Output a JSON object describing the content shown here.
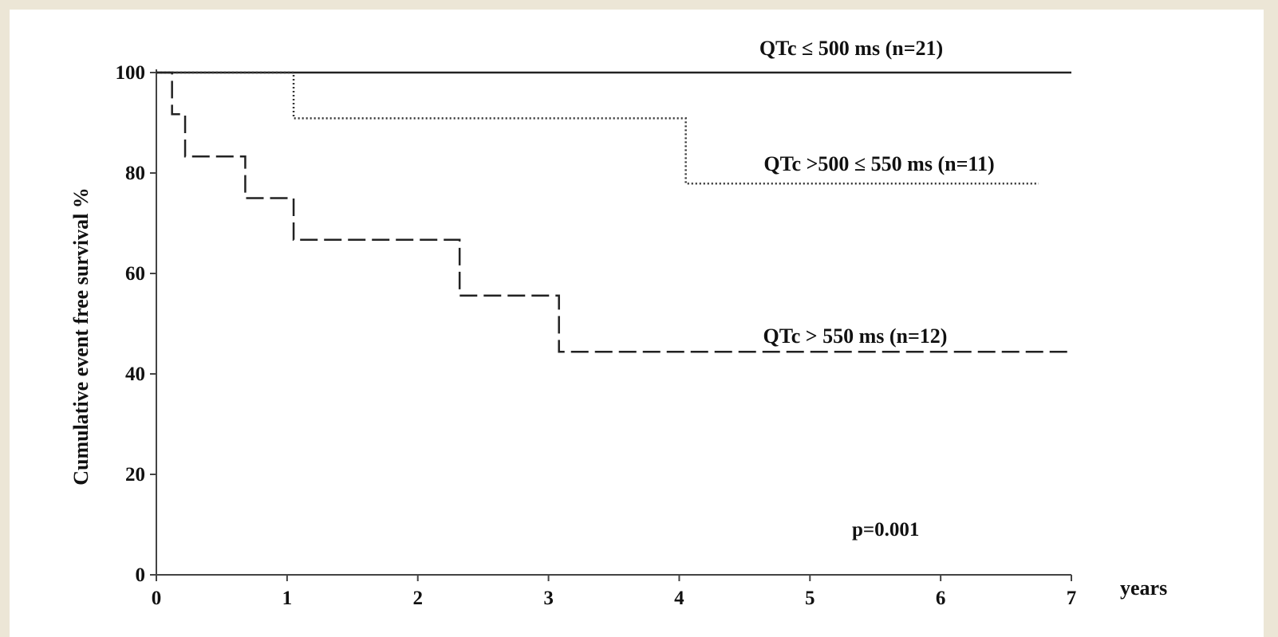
{
  "chart_data": {
    "type": "line",
    "title": "",
    "xlabel": "years",
    "ylabel": "Cumulative event free survival %",
    "xlim": [
      0,
      7
    ],
    "ylim": [
      0,
      100
    ],
    "x_ticks": [
      "0",
      "1",
      "2",
      "3",
      "4",
      "5",
      "6",
      "7"
    ],
    "y_ticks": [
      "0",
      "20",
      "40",
      "60",
      "80",
      "100"
    ],
    "grid": false,
    "legend": "none",
    "annotation": "p=0.001",
    "series": [
      {
        "name": "QTc ≤ 500 ms (n=21)",
        "style": "solid",
        "color": "#222222",
        "steps": [
          [
            0,
            100
          ],
          [
            7,
            100
          ]
        ]
      },
      {
        "name": "QTc >500 ≤ 550 ms (n=11)",
        "style": "dotted",
        "color": "#333333",
        "steps": [
          [
            0,
            100
          ],
          [
            1.05,
            90.9
          ],
          [
            4.05,
            77.9
          ],
          [
            6.75,
            77.9
          ]
        ]
      },
      {
        "name": "QTc > 550 ms (n=12)",
        "style": "dashed",
        "color": "#222222",
        "steps": [
          [
            0,
            100
          ],
          [
            0.12,
            91.7
          ],
          [
            0.22,
            83.3
          ],
          [
            0.68,
            75.0
          ],
          [
            1.05,
            66.7
          ],
          [
            2.32,
            55.6
          ],
          [
            3.08,
            44.4
          ],
          [
            7,
            44.4
          ]
        ]
      }
    ]
  }
}
